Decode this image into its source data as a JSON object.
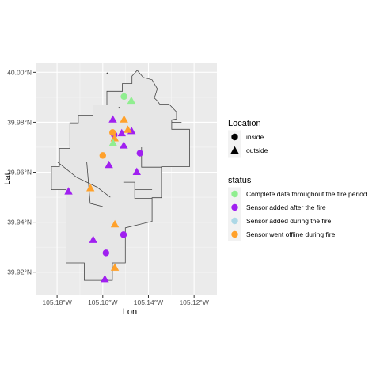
{
  "chart_data": {
    "type": "scatter",
    "xlabel": "Lon",
    "ylabel": "Lat",
    "xlim": [
      -105.1894,
      -105.11
    ],
    "ylim": [
      39.9107,
      40.0036
    ],
    "x_ticks": [
      {
        "value": -105.18,
        "label": "105.18°W"
      },
      {
        "value": -105.16,
        "label": "105.16°W"
      },
      {
        "value": -105.14,
        "label": "105.14°W"
      },
      {
        "value": -105.12,
        "label": "105.12°W"
      }
    ],
    "y_ticks": [
      {
        "value": 39.92,
        "label": "39.92°N"
      },
      {
        "value": 39.94,
        "label": "39.94°N"
      },
      {
        "value": 39.96,
        "label": "39.96°N"
      },
      {
        "value": 39.98,
        "label": "39.98°N"
      },
      {
        "value": 40.0,
        "label": "40.00°N"
      }
    ],
    "grid": true,
    "legend_position": "right",
    "legend_location": {
      "title": "Location",
      "entries": [
        {
          "label": "inside",
          "shape": "circle"
        },
        {
          "label": "outside",
          "shape": "triangle"
        }
      ]
    },
    "legend_status": {
      "title": "status",
      "entries": [
        {
          "label": "Complete data throughout the fire period",
          "color": "#90EE90"
        },
        {
          "label": "Sensor added after the fire",
          "color": "#A020F0"
        },
        {
          "label": "Sensor added during the fire",
          "color": "#ADD8E6"
        },
        {
          "label": "Sensor went offline during fire",
          "color": "#FFA12B"
        }
      ]
    },
    "boundary": [
      [
        -105.1449,
        40.0008
      ],
      [
        -105.1423,
        39.998
      ],
      [
        -105.1384,
        39.997
      ],
      [
        -105.1361,
        39.9934
      ],
      [
        -105.1374,
        39.9897
      ],
      [
        -105.1362,
        39.9887
      ],
      [
        -105.1351,
        39.9873
      ],
      [
        -105.131,
        39.9873
      ],
      [
        -105.1277,
        39.9841
      ],
      [
        -105.1277,
        39.9813
      ],
      [
        -105.1298,
        39.981
      ],
      [
        -105.1298,
        39.9772
      ],
      [
        -105.122,
        39.9772
      ],
      [
        -105.122,
        39.9622
      ],
      [
        -105.1343,
        39.9622
      ],
      [
        -105.1343,
        39.9498
      ],
      [
        -105.1384,
        39.9498
      ],
      [
        -105.1384,
        39.947
      ],
      [
        -105.1384,
        39.9403
      ],
      [
        -105.1501,
        39.9377
      ],
      [
        -105.1501,
        39.9237
      ],
      [
        -105.1558,
        39.9237
      ],
      [
        -105.1558,
        39.9167
      ],
      [
        -105.1681,
        39.9167
      ],
      [
        -105.1681,
        39.9237
      ],
      [
        -105.1761,
        39.9237
      ],
      [
        -105.1761,
        39.953
      ],
      [
        -105.1825,
        39.953
      ],
      [
        -105.1825,
        39.9622
      ],
      [
        -105.179,
        39.9622
      ],
      [
        -105.179,
        39.9695
      ],
      [
        -105.1744,
        39.9695
      ],
      [
        -105.1744,
        39.9798
      ],
      [
        -105.1707,
        39.9798
      ],
      [
        -105.1707,
        39.9828
      ],
      [
        -105.1643,
        39.9828
      ],
      [
        -105.1643,
        39.987
      ],
      [
        -105.1582,
        39.987
      ],
      [
        -105.1582,
        39.9924
      ],
      [
        -105.1514,
        39.9924
      ],
      [
        -105.1514,
        39.9955
      ],
      [
        -105.1472,
        39.9955
      ],
      [
        -105.1472,
        39.9985
      ]
    ],
    "inner_lines": [
      [
        [
          -105.1797,
          39.964
        ],
        [
          -105.1715,
          39.958
        ],
        [
          -105.1625,
          39.954
        ],
        [
          -105.1567,
          39.95
        ]
      ],
      [
        [
          -105.167,
          39.964
        ],
        [
          -105.1655,
          39.9475
        ],
        [
          -105.16,
          39.9462
        ]
      ],
      [
        [
          -105.151,
          39.956
        ],
        [
          -105.146,
          39.956
        ],
        [
          -105.146,
          39.9495
        ],
        [
          -105.1384,
          39.9495
        ]
      ],
      [
        [
          -105.146,
          39.953
        ],
        [
          -105.1384,
          39.953
        ]
      ],
      [
        [
          -105.143,
          39.97
        ],
        [
          -105.143,
          39.962
        ],
        [
          -105.1343,
          39.962
        ]
      ],
      [
        [
          -105.1298,
          39.98
        ],
        [
          -105.1255,
          39.98
        ]
      ]
    ],
    "boundary_dots": [
      [
        -105.158,
        39.9996
      ],
      [
        -105.1528,
        39.9858
      ]
    ],
    "points": [
      {
        "lon": -105.1507,
        "lat": 39.9903,
        "shape": "circle",
        "status": 0
      },
      {
        "lon": -105.1475,
        "lat": 39.9887,
        "shape": "triangle",
        "status": 0
      },
      {
        "lon": -105.1556,
        "lat": 39.9812,
        "shape": "triangle",
        "status": 1
      },
      {
        "lon": -105.1507,
        "lat": 39.9812,
        "shape": "triangle",
        "status": 3
      },
      {
        "lon": -105.1474,
        "lat": 39.9766,
        "shape": "triangle",
        "status": 1
      },
      {
        "lon": -105.149,
        "lat": 39.9771,
        "shape": "triangle",
        "status": 3
      },
      {
        "lon": -105.1517,
        "lat": 39.9757,
        "shape": "triangle",
        "status": 1
      },
      {
        "lon": -105.155,
        "lat": 39.975,
        "shape": "circle",
        "status": 1
      },
      {
        "lon": -105.1557,
        "lat": 39.9759,
        "shape": "circle",
        "status": 3
      },
      {
        "lon": -105.1548,
        "lat": 39.9737,
        "shape": "triangle",
        "status": 3
      },
      {
        "lon": -105.1555,
        "lat": 39.9718,
        "shape": "triangle",
        "status": 0
      },
      {
        "lon": -105.1508,
        "lat": 39.9708,
        "shape": "triangle",
        "status": 1
      },
      {
        "lon": -105.1437,
        "lat": 39.9676,
        "shape": "circle",
        "status": 1
      },
      {
        "lon": -105.16,
        "lat": 39.9667,
        "shape": "circle",
        "status": 3
      },
      {
        "lon": -105.1573,
        "lat": 39.963,
        "shape": "triangle",
        "status": 1
      },
      {
        "lon": -105.1451,
        "lat": 39.9602,
        "shape": "triangle",
        "status": 1
      },
      {
        "lon": -105.1654,
        "lat": 39.9537,
        "shape": "triangle",
        "status": 3
      },
      {
        "lon": -105.175,
        "lat": 39.9524,
        "shape": "triangle",
        "status": 1
      },
      {
        "lon": -105.1547,
        "lat": 39.9392,
        "shape": "triangle",
        "status": 3
      },
      {
        "lon": -105.1509,
        "lat": 39.935,
        "shape": "circle",
        "status": 1
      },
      {
        "lon": -105.1642,
        "lat": 39.933,
        "shape": "triangle",
        "status": 1
      },
      {
        "lon": -105.1586,
        "lat": 39.9277,
        "shape": "circle",
        "status": 1
      },
      {
        "lon": -105.1547,
        "lat": 39.9219,
        "shape": "triangle",
        "status": 3
      },
      {
        "lon": -105.1591,
        "lat": 39.9173,
        "shape": "triangle",
        "status": 1
      }
    ]
  }
}
